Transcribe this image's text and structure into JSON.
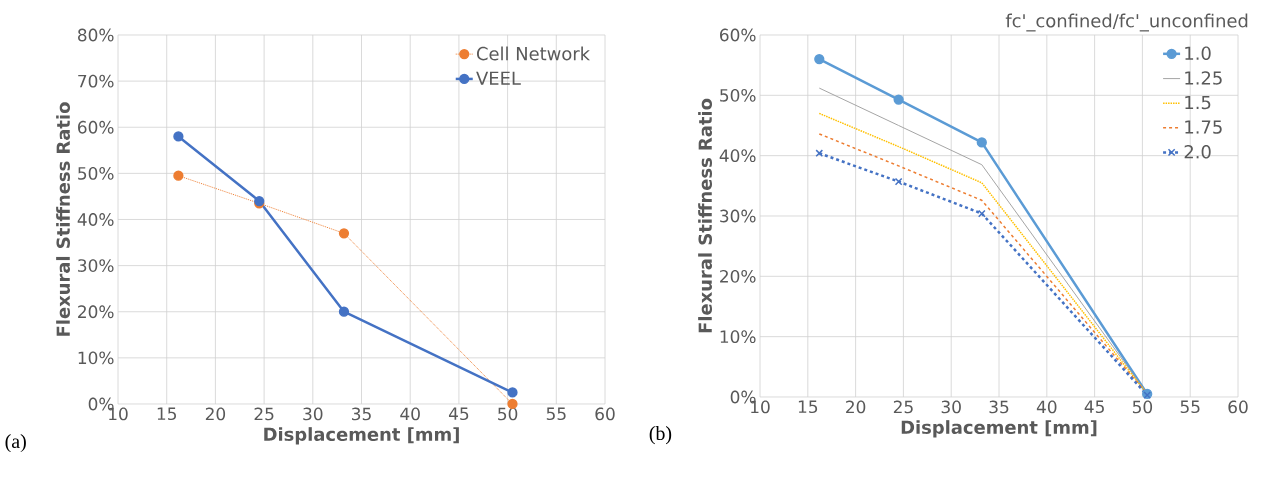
{
  "chart_data": [
    {
      "type": "line",
      "xlabel": "Displacement [mm]",
      "ylabel": "Flexural Stiffness Ratio",
      "annotations": [
        "(a)"
      ],
      "xlim": [
        10,
        60
      ],
      "xticks": [
        10,
        15,
        20,
        25,
        30,
        35,
        40,
        45,
        50,
        55,
        60
      ],
      "ylim": [
        0,
        80
      ],
      "yticks": [
        {
          "value": 0,
          "label": "0%"
        },
        {
          "value": 10,
          "label": "10%"
        },
        {
          "value": 20,
          "label": "20%"
        },
        {
          "value": 30,
          "label": "30%"
        },
        {
          "value": 40,
          "label": "40%"
        },
        {
          "value": 50,
          "label": "50%"
        },
        {
          "value": 60,
          "label": "60%"
        },
        {
          "value": 70,
          "label": "70%"
        },
        {
          "value": 80,
          "label": "80%"
        }
      ],
      "grid": true,
      "legend": "top right",
      "x": [
        16.2,
        24.5,
        33.2,
        50.5
      ],
      "series": [
        {
          "name": "Cell Network",
          "color": "#ed7d31",
          "values": [
            49.5,
            43.5,
            37,
            0
          ],
          "marker": "circle",
          "line_style": "dotted"
        },
        {
          "name": "VEEL",
          "color": "#4472c4",
          "values": [
            58,
            44,
            20,
            2.5
          ],
          "marker": "circle",
          "line_style": "solid"
        }
      ]
    },
    {
      "type": "line",
      "xlabel": "Displacement [mm]",
      "ylabel": "Flexural Stiffness Ratio",
      "legend_title": "fc'_confined/fc'_unconfined",
      "annotations": [
        "(b)"
      ],
      "xlim": [
        10,
        60
      ],
      "xticks": [
        10,
        15,
        20,
        25,
        30,
        35,
        40,
        45,
        50,
        55,
        60
      ],
      "ylim": [
        0,
        60
      ],
      "yticks": [
        {
          "value": 0,
          "label": "0%"
        },
        {
          "value": 10,
          "label": "10%"
        },
        {
          "value": 20,
          "label": "20%"
        },
        {
          "value": 30,
          "label": "30%"
        },
        {
          "value": 40,
          "label": "40%"
        },
        {
          "value": 50,
          "label": "50%"
        },
        {
          "value": 60,
          "label": "60%"
        }
      ],
      "grid": true,
      "legend": "top right",
      "x": [
        16.2,
        24.5,
        33.2,
        50.5
      ],
      "series": [
        {
          "name": "1.0",
          "color": "#5b9bd5",
          "values": [
            56,
            49.3,
            42.2,
            0.5
          ],
          "marker": "circle",
          "line_style": "solid"
        },
        {
          "name": "1.25",
          "color": "#a5a5a5",
          "values": [
            51.2,
            45,
            38.5,
            0.5
          ],
          "marker": "none",
          "line_style": "solid"
        },
        {
          "name": "1.5",
          "color": "#ffc000",
          "values": [
            47,
            41.5,
            35.5,
            0.5
          ],
          "marker": "none",
          "line_style": "dotted"
        },
        {
          "name": "1.75",
          "color": "#ed7d31",
          "values": [
            43.6,
            38.3,
            32.6,
            0.5
          ],
          "marker": "none",
          "line_style": "dashed"
        },
        {
          "name": "2.0",
          "color": "#4472c4",
          "values": [
            40.4,
            35.7,
            30.4,
            0.3
          ],
          "marker": "cross",
          "line_style": "dashed"
        }
      ]
    }
  ]
}
